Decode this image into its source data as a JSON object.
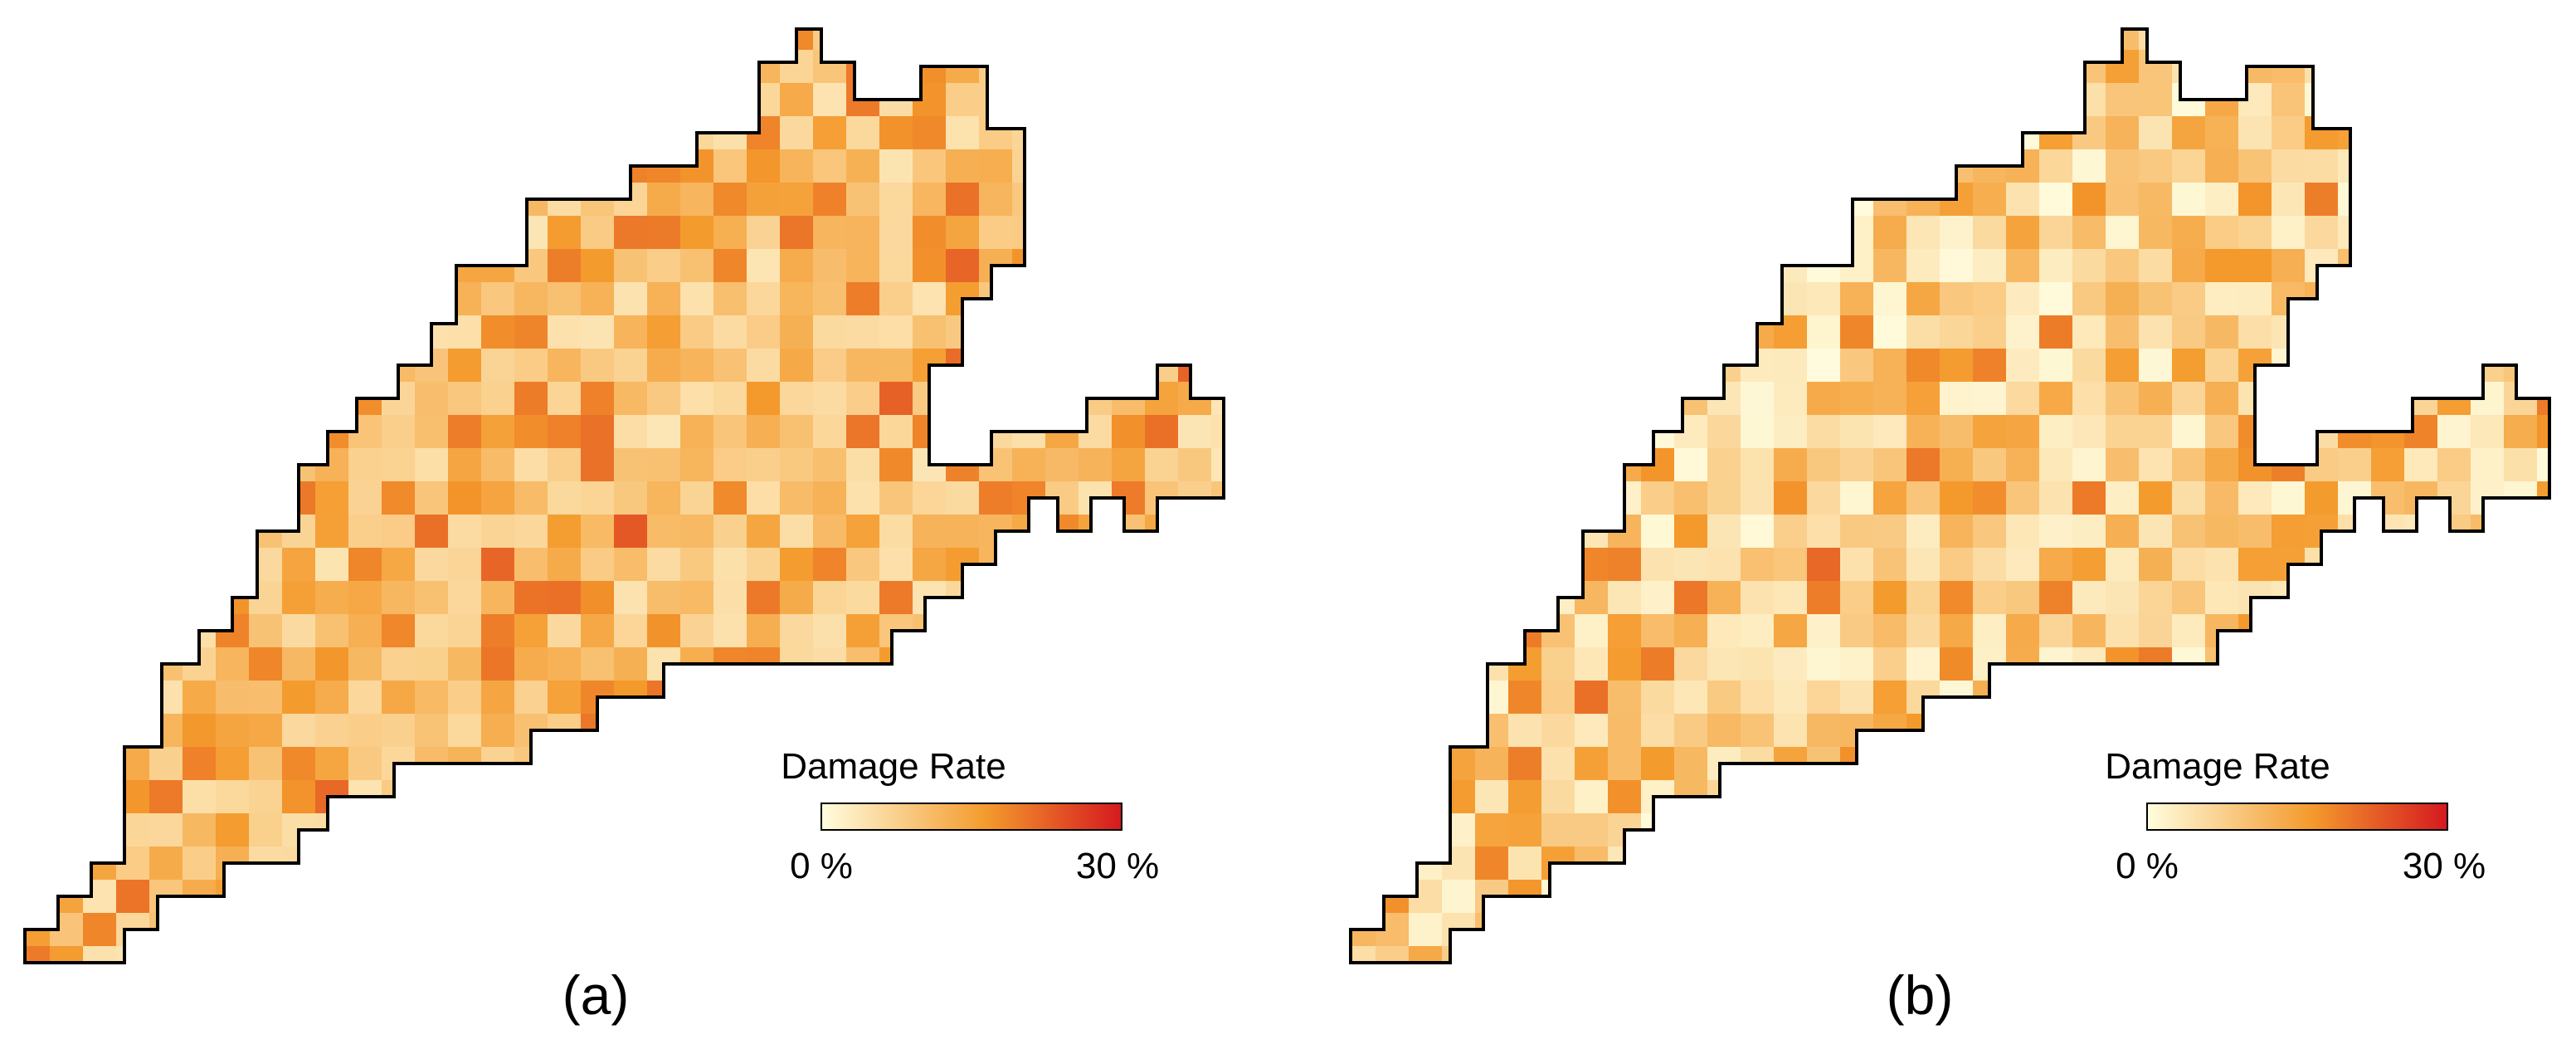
{
  "maps": [
    {
      "label": "(a)",
      "legend": {
        "title": "Damage Rate",
        "min_label": "0 %",
        "max_label": "30 %"
      },
      "damage_scale": {
        "min": 0,
        "max": 30,
        "unit": "%"
      }
    },
    {
      "label": "(b)",
      "legend": {
        "title": "Damage Rate",
        "min_label": "0 %",
        "max_label": "30 %"
      },
      "damage_scale": {
        "min": 0,
        "max": 30,
        "unit": "%"
      }
    }
  ],
  "colors": {
    "scale_low": "#fffddf",
    "scale_mid": "#f49a2c",
    "scale_high": "#d5191f",
    "outline": "#000000",
    "background": "#ffffff"
  }
}
